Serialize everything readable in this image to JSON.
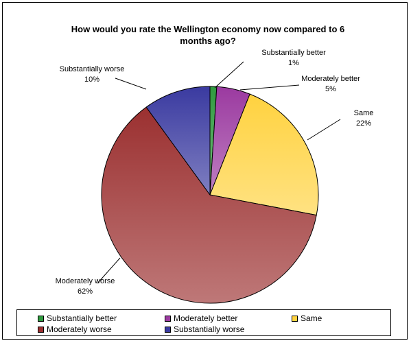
{
  "chart_data": {
    "type": "pie",
    "title_lines": [
      "How would you rate the Wellington economy now compared to 6",
      "months ago?"
    ],
    "slices": [
      {
        "name": "Substantially better",
        "value": 1,
        "label": "1%",
        "color": "#2f9a3f"
      },
      {
        "name": "Moderately better",
        "value": 5,
        "label": "5%",
        "color": "#9b3aa0"
      },
      {
        "name": "Same",
        "value": 22,
        "label": "22%",
        "color": "#ffd23f"
      },
      {
        "name": "Moderately worse",
        "value": 62,
        "label": "62%",
        "color": "#9b3030"
      },
      {
        "name": "Substantially worse",
        "value": 10,
        "label": "10%",
        "color": "#3a3aa0"
      }
    ],
    "start_angle_deg": 0,
    "direction": "clockwise",
    "legend_position": "bottom",
    "grid": false
  }
}
